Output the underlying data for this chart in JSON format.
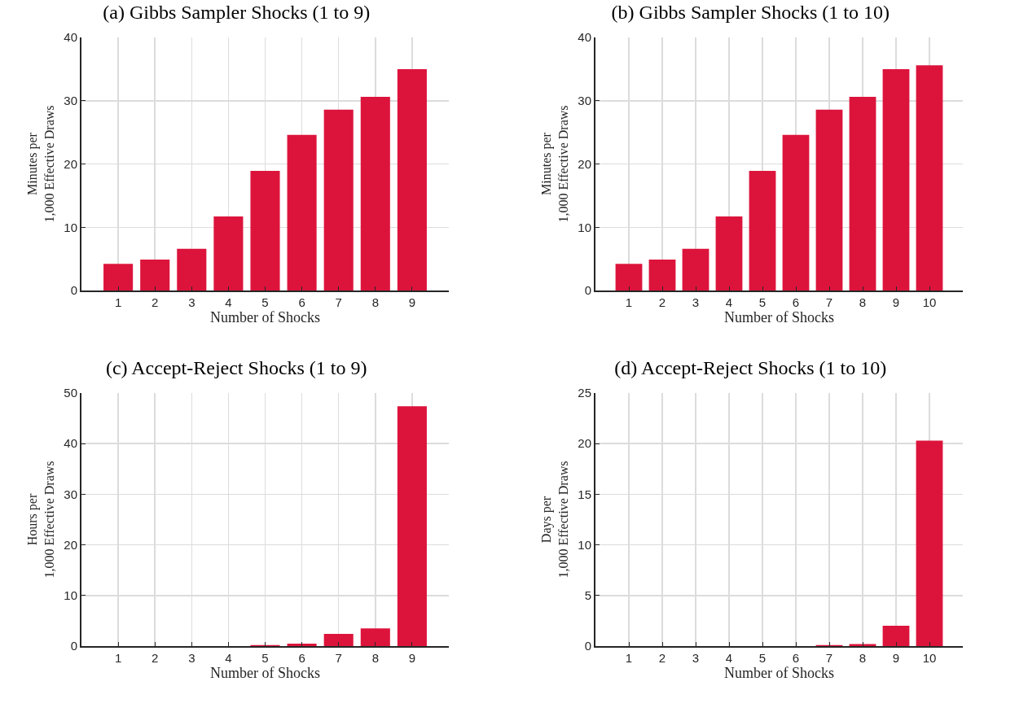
{
  "chart_data": [
    {
      "type": "bar",
      "title": "(a) Gibbs Sampler Shocks (1 to 9)",
      "xlabel": "Number of Shocks",
      "ylabel": "Minutes per\n1,000 Effective Draws",
      "x": [
        1,
        2,
        3,
        4,
        5,
        6,
        7,
        8,
        9
      ],
      "values": [
        4.2,
        4.9,
        6.6,
        11.7,
        18.9,
        24.6,
        28.6,
        30.6,
        35.0
      ],
      "color": "#dc143c",
      "xlim": [
        0,
        10
      ],
      "xticks": [
        1,
        2,
        3,
        4,
        5,
        6,
        7,
        8,
        9
      ],
      "ylim": [
        0,
        40
      ],
      "yticks": [
        0,
        10,
        20,
        30,
        40
      ],
      "grid": true
    },
    {
      "type": "bar",
      "title": "(b) Gibbs Sampler Shocks (1 to 10)",
      "xlabel": "Number of Shocks",
      "ylabel": "Minutes per\n1,000 Effective Draws",
      "x": [
        1,
        2,
        3,
        4,
        5,
        6,
        7,
        8,
        9,
        10
      ],
      "values": [
        4.2,
        4.9,
        6.6,
        11.7,
        18.9,
        24.6,
        28.6,
        30.6,
        35.0,
        35.6
      ],
      "color": "#dc143c",
      "xlim": [
        0,
        11
      ],
      "xticks": [
        1,
        2,
        3,
        4,
        5,
        6,
        7,
        8,
        9,
        10
      ],
      "ylim": [
        0,
        40
      ],
      "yticks": [
        0,
        10,
        20,
        30,
        40
      ],
      "grid": true
    },
    {
      "type": "bar",
      "title": "(c) Accept-Reject Shocks (1 to 9)",
      "xlabel": "Number of Shocks",
      "ylabel": "Hours per\n1,000 Effective Draws",
      "x": [
        1,
        2,
        3,
        4,
        5,
        6,
        7,
        8,
        9
      ],
      "values": [
        0,
        0,
        0,
        0,
        0.2,
        0.5,
        2.4,
        3.5,
        47.4
      ],
      "color": "#dc143c",
      "xlim": [
        0,
        10
      ],
      "xticks": [
        1,
        2,
        3,
        4,
        5,
        6,
        7,
        8,
        9
      ],
      "ylim": [
        0,
        50
      ],
      "yticks": [
        0,
        10,
        20,
        30,
        40,
        50
      ],
      "grid": true
    },
    {
      "type": "bar",
      "title": "(d) Accept-Reject Shocks (1 to 10)",
      "xlabel": "Number of Shocks",
      "ylabel": "Days per\n1,000 Effective Draws",
      "x": [
        1,
        2,
        3,
        4,
        5,
        6,
        7,
        8,
        9,
        10
      ],
      "values": [
        0,
        0,
        0,
        0,
        0,
        0,
        0.1,
        0.2,
        2.0,
        20.3
      ],
      "color": "#dc143c",
      "xlim": [
        0,
        11
      ],
      "xticks": [
        1,
        2,
        3,
        4,
        5,
        6,
        7,
        8,
        9,
        10
      ],
      "ylim": [
        0,
        25
      ],
      "yticks": [
        0,
        5,
        10,
        15,
        20,
        25
      ],
      "grid": true
    }
  ]
}
